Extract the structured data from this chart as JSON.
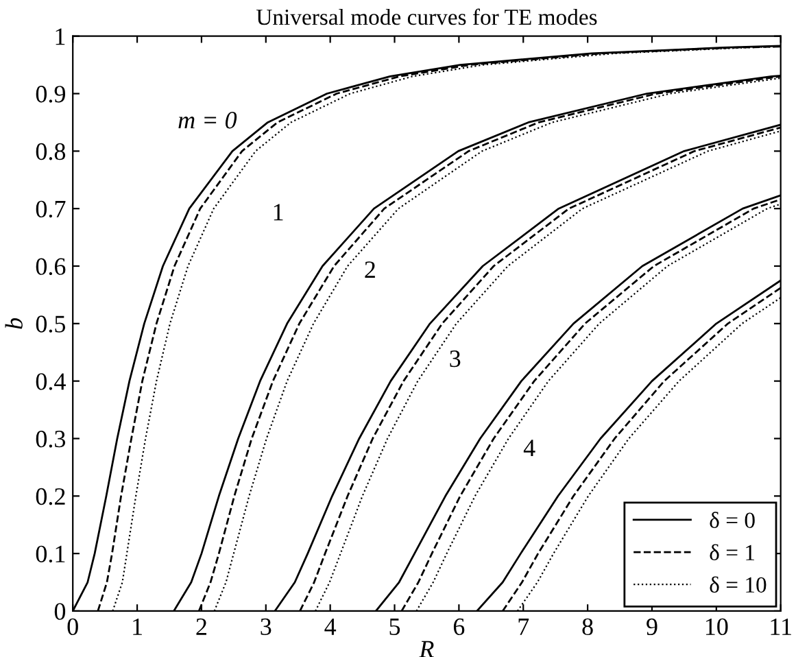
{
  "chart_data": {
    "type": "line",
    "title": "Universal mode curves for TE modes",
    "xlabel": "R",
    "ylabel": "b",
    "xlim": [
      0,
      11
    ],
    "ylim": [
      0,
      1
    ],
    "xticks": [
      0,
      1,
      2,
      3,
      4,
      5,
      6,
      7,
      8,
      9,
      10,
      11
    ],
    "yticks": [
      0,
      0.1,
      0.2,
      0.3,
      0.4,
      0.5,
      0.6,
      0.7,
      0.8,
      0.9,
      1
    ],
    "grid": false,
    "legend": "bottom right",
    "marker": "none",
    "annotations": [
      "m = 0",
      "1",
      "2",
      "3",
      "4"
    ],
    "series": [
      {
        "name": "δ = 0",
        "color": "#000000",
        "line_style": "solid",
        "x": [
          0,
          0.23,
          0.34,
          0.52,
          0.69,
          0.88,
          1.11,
          1.4,
          1.81,
          2.48,
          3.03,
          3.95,
          4.93,
          6.02,
          8.06,
          10.1,
          11
        ],
        "values": [
          0,
          0.05,
          0.1,
          0.2,
          0.3,
          0.4,
          0.5,
          0.6,
          0.7,
          0.8,
          0.85,
          0.9,
          0.93,
          0.95,
          0.97,
          0.98,
          0.983
        ]
      },
      {
        "name": "δ = 1",
        "color": "#000000",
        "line_style": "dashed",
        "x": [
          0.39,
          0.53,
          0.61,
          0.75,
          0.91,
          1.08,
          1.3,
          1.58,
          1.98,
          2.63,
          3.18,
          4.1,
          5.08,
          6.17,
          8.21,
          10.25,
          11
        ],
        "values": [
          0,
          0.05,
          0.1,
          0.2,
          0.3,
          0.4,
          0.5,
          0.6,
          0.7,
          0.8,
          0.85,
          0.9,
          0.93,
          0.95,
          0.97,
          0.98,
          0.982
        ]
      },
      {
        "name": "δ = 10",
        "color": "#000000",
        "line_style": "dotted",
        "x": [
          0.62,
          0.77,
          0.84,
          0.98,
          1.13,
          1.3,
          1.51,
          1.79,
          2.19,
          2.84,
          3.39,
          4.31,
          5.28,
          6.37,
          8.42,
          10.45,
          11
        ],
        "values": [
          0,
          0.05,
          0.1,
          0.2,
          0.3,
          0.4,
          0.5,
          0.6,
          0.7,
          0.8,
          0.85,
          0.9,
          0.93,
          0.95,
          0.97,
          0.98,
          0.982
        ]
      },
      {
        "color": "#000000",
        "line_style": "solid",
        "x": [
          1.57,
          1.84,
          2.0,
          2.27,
          2.57,
          2.91,
          3.33,
          3.88,
          4.68,
          5.99,
          7.08,
          8.92,
          10.86,
          11
        ],
        "values": [
          0,
          0.05,
          0.1,
          0.2,
          0.3,
          0.4,
          0.5,
          0.6,
          0.7,
          0.8,
          0.85,
          0.9,
          0.93,
          0.931
        ]
      },
      {
        "color": "#000000",
        "line_style": "dashed",
        "x": [
          1.96,
          2.14,
          2.27,
          2.51,
          2.78,
          3.11,
          3.52,
          4.06,
          4.84,
          6.15,
          7.24,
          9.07,
          11
        ],
        "values": [
          0,
          0.05,
          0.1,
          0.2,
          0.3,
          0.4,
          0.5,
          0.6,
          0.7,
          0.8,
          0.85,
          0.9,
          0.93
        ]
      },
      {
        "color": "#000000",
        "line_style": "dotted",
        "x": [
          2.2,
          2.38,
          2.5,
          2.74,
          3.01,
          3.33,
          3.74,
          4.27,
          5.06,
          6.36,
          7.45,
          9.28,
          11
        ],
        "values": [
          0,
          0.05,
          0.1,
          0.2,
          0.3,
          0.4,
          0.5,
          0.6,
          0.7,
          0.8,
          0.85,
          0.9,
          0.927
        ]
      },
      {
        "color": "#000000",
        "line_style": "solid",
        "x": [
          3.14,
          3.45,
          3.65,
          4.03,
          4.45,
          4.94,
          5.55,
          6.37,
          7.55,
          9.5,
          11
        ],
        "values": [
          0,
          0.05,
          0.1,
          0.2,
          0.3,
          0.4,
          0.5,
          0.6,
          0.7,
          0.8,
          0.846
        ]
      },
      {
        "color": "#000000",
        "line_style": "dashed",
        "x": [
          3.53,
          3.75,
          3.92,
          4.27,
          4.66,
          5.14,
          5.74,
          6.54,
          7.71,
          9.66,
          11
        ],
        "values": [
          0,
          0.05,
          0.1,
          0.2,
          0.3,
          0.4,
          0.5,
          0.6,
          0.7,
          0.8,
          0.841
        ]
      },
      {
        "color": "#000000",
        "line_style": "dotted",
        "x": [
          3.77,
          3.99,
          4.16,
          4.5,
          4.89,
          5.36,
          5.96,
          6.76,
          7.92,
          9.87,
          11
        ],
        "values": [
          0,
          0.05,
          0.1,
          0.2,
          0.3,
          0.4,
          0.5,
          0.6,
          0.7,
          0.8,
          0.835
        ]
      },
      {
        "color": "#000000",
        "line_style": "solid",
        "x": [
          4.71,
          5.07,
          5.31,
          5.79,
          6.33,
          6.97,
          7.78,
          8.85,
          10.41,
          11
        ],
        "values": [
          0,
          0.05,
          0.1,
          0.2,
          0.3,
          0.4,
          0.5,
          0.6,
          0.7,
          0.723
        ]
      },
      {
        "color": "#000000",
        "line_style": "dashed",
        "x": [
          5.11,
          5.37,
          5.58,
          6.02,
          6.54,
          7.17,
          7.96,
          9.03,
          10.58,
          11
        ],
        "values": [
          0,
          0.05,
          0.1,
          0.2,
          0.3,
          0.4,
          0.5,
          0.6,
          0.7,
          0.716
        ]
      },
      {
        "color": "#000000",
        "line_style": "dotted",
        "x": [
          5.34,
          5.6,
          5.81,
          6.25,
          6.77,
          7.39,
          8.18,
          9.24,
          10.79,
          11
        ],
        "values": [
          0,
          0.05,
          0.1,
          0.2,
          0.3,
          0.4,
          0.5,
          0.6,
          0.7,
          0.708
        ]
      },
      {
        "color": "#000000",
        "line_style": "solid",
        "x": [
          6.28,
          6.68,
          6.96,
          7.54,
          8.2,
          9.0,
          10.0,
          11
        ],
        "values": [
          0,
          0.05,
          0.1,
          0.2,
          0.3,
          0.4,
          0.5,
          0.575
        ]
      },
      {
        "color": "#000000",
        "line_style": "dashed",
        "x": [
          6.68,
          6.98,
          7.23,
          7.78,
          8.42,
          9.19,
          10.18,
          11
        ],
        "values": [
          0,
          0.05,
          0.1,
          0.2,
          0.3,
          0.4,
          0.5,
          0.562
        ]
      },
      {
        "color": "#000000",
        "line_style": "dotted",
        "x": [
          6.91,
          7.22,
          7.47,
          8.01,
          8.64,
          9.42,
          10.4,
          11
        ],
        "values": [
          0,
          0.05,
          0.1,
          0.2,
          0.3,
          0.4,
          0.5,
          0.545
        ]
      }
    ]
  }
}
